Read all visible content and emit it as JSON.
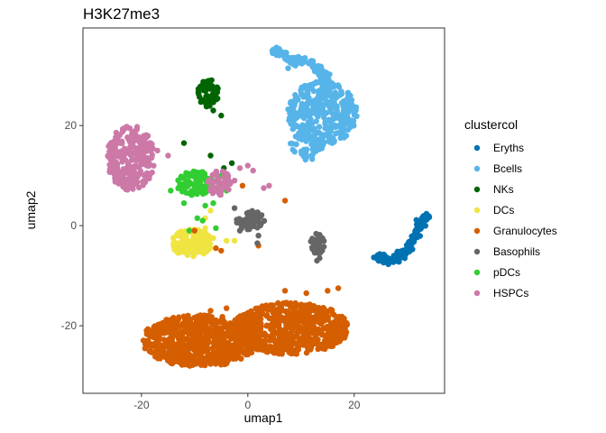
{
  "chart_data": {
    "type": "scatter",
    "title": "H3K27me3",
    "xlabel": "umap1",
    "ylabel": "umap2",
    "xlim": [
      -31,
      37
    ],
    "ylim": [
      -33.5,
      39.5
    ],
    "xticks": [
      -20,
      0,
      20
    ],
    "yticks": [
      -20,
      0,
      20
    ],
    "grid": false,
    "legend": {
      "title": "clustercol",
      "placement": "right"
    },
    "series": [
      {
        "name": "Eryths",
        "color": "#0072B2",
        "clusters": [
          {
            "type": "arc",
            "points": [
              [
                24.5,
                -6.3
              ],
              [
                27,
                -7
              ],
              [
                29,
                -6
              ],
              [
                31,
                -3
              ],
              [
                32.5,
                0
              ],
              [
                33.5,
                2
              ]
            ],
            "spread": 0.9,
            "n": 170
          }
        ]
      },
      {
        "name": "Bcells",
        "color": "#56B4E9",
        "clusters": [
          {
            "type": "blob",
            "cx": 14,
            "cy": 22.5,
            "rx": 6.5,
            "ry": 6.5,
            "n": 320
          },
          {
            "type": "blob",
            "cx": 11,
            "cy": 16,
            "rx": 3,
            "ry": 3,
            "n": 50
          },
          {
            "type": "arc",
            "points": [
              [
                5.5,
                35
              ],
              [
                8,
                33
              ],
              [
                11,
                33.5
              ],
              [
                13.5,
                31
              ],
              [
                14.5,
                29
              ],
              [
                15.5,
                27
              ]
            ],
            "spread": 1.0,
            "n": 120
          }
        ]
      },
      {
        "name": "NKs",
        "color": "#006400",
        "clusters": [
          {
            "type": "blob",
            "cx": -7.5,
            "cy": 26.5,
            "rx": 2,
            "ry": 2.8,
            "n": 55
          },
          {
            "type": "points",
            "xy": [
              [
                -12,
                16.5
              ],
              [
                -7,
                14
              ],
              [
                -3,
                12.5
              ],
              [
                -4.5,
                11.5
              ],
              [
                -6.5,
                23
              ],
              [
                -5,
                22
              ]
            ]
          }
        ]
      },
      {
        "name": "DCs",
        "color": "#F0E442",
        "clusters": [
          {
            "type": "blob",
            "cx": -10.5,
            "cy": -3.5,
            "rx": 3.8,
            "ry": 2.8,
            "n": 170
          },
          {
            "type": "points",
            "xy": [
              [
                -8,
                1.5
              ],
              [
                -7,
                3
              ],
              [
                -4,
                -3
              ],
              [
                -2.5,
                -3
              ],
              [
                -8,
                -0.5
              ],
              [
                -6.5,
                -2.5
              ]
            ]
          }
        ]
      },
      {
        "name": "Granulocytes",
        "color": "#D55E00",
        "clusters": [
          {
            "type": "blob",
            "cx": -9,
            "cy": -23,
            "rx": 11,
            "ry": 5.2,
            "n": 700
          },
          {
            "type": "blob",
            "cx": 8,
            "cy": -20.5,
            "rx": 11,
            "ry": 5.2,
            "n": 700
          },
          {
            "type": "points",
            "xy": [
              [
                -7,
                -17
              ],
              [
                -4,
                -16.5
              ],
              [
                7,
                -13
              ],
              [
                11,
                -13.5
              ],
              [
                15,
                -13
              ],
              [
                17,
                -12.5
              ],
              [
                -6,
                -4.5
              ],
              [
                2,
                -4
              ],
              [
                7,
                5
              ],
              [
                -1,
                8
              ],
              [
                -10,
                -1
              ],
              [
                -5,
                -5
              ]
            ]
          }
        ]
      },
      {
        "name": "Basophils",
        "color": "#666666",
        "clusters": [
          {
            "type": "blob",
            "cx": 0.5,
            "cy": 1,
            "rx": 2.7,
            "ry": 2,
            "n": 60
          },
          {
            "type": "blob",
            "cx": 13,
            "cy": -3.5,
            "rx": 1.4,
            "ry": 2.3,
            "n": 40
          },
          {
            "type": "points",
            "xy": [
              [
                2,
                -2
              ],
              [
                1.8,
                -3.5
              ],
              [
                -2.5,
                3.5
              ],
              [
                13,
                -7
              ],
              [
                13.5,
                -6.5
              ],
              [
                -1.5,
                -1
              ]
            ]
          }
        ]
      },
      {
        "name": "pDCs",
        "color": "#32CD32",
        "clusters": [
          {
            "type": "blob",
            "cx": -10,
            "cy": 8.5,
            "rx": 3.4,
            "ry": 2.5,
            "n": 110
          },
          {
            "type": "points",
            "xy": [
              [
                -14.5,
                7
              ],
              [
                -12,
                4.5
              ],
              [
                -9.5,
                1.5
              ],
              [
                -8.5,
                1
              ],
              [
                -6.5,
                4.5
              ],
              [
                -5,
                10
              ],
              [
                -4,
                7
              ],
              [
                -8,
                4
              ],
              [
                -11,
                -1
              ],
              [
                -6,
                -0.5
              ]
            ]
          }
        ]
      },
      {
        "name": "HSPCs",
        "color": "#CC79A7",
        "clusters": [
          {
            "type": "blob",
            "cx": -22,
            "cy": 13.5,
            "rx": 4.5,
            "ry": 6.5,
            "n": 260
          },
          {
            "type": "blob",
            "cx": -5.3,
            "cy": 8.5,
            "rx": 2.2,
            "ry": 2.5,
            "n": 60
          },
          {
            "type": "points",
            "xy": [
              [
                -17,
                15
              ],
              [
                -15,
                14
              ],
              [
                -19,
                12
              ],
              [
                -1.5,
                11.5
              ],
              [
                0,
                12
              ],
              [
                1,
                11
              ],
              [
                4,
                8
              ],
              [
                3,
                7.5
              ],
              [
                -2.5,
                9
              ]
            ]
          }
        ]
      }
    ]
  }
}
